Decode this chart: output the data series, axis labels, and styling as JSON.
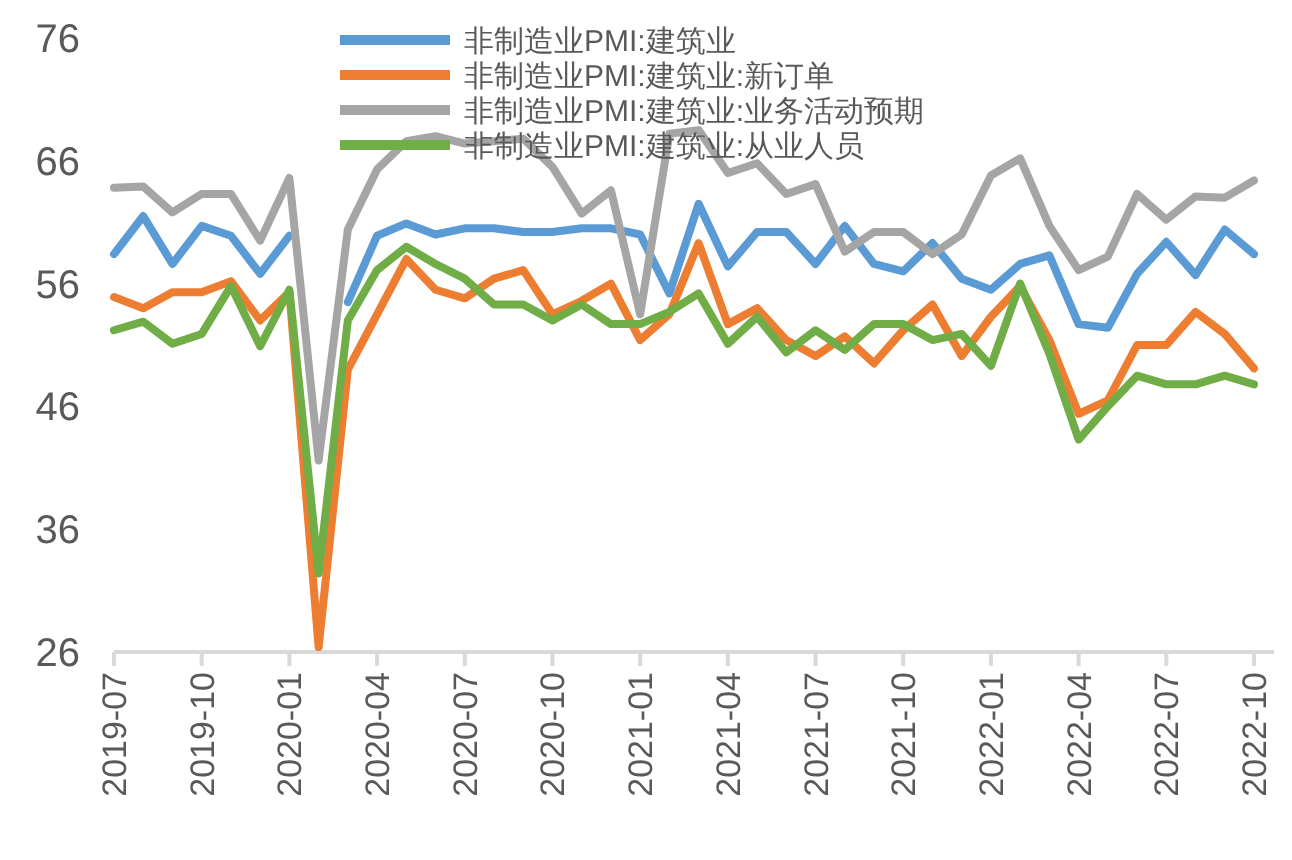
{
  "chart_data": {
    "type": "line",
    "categories": [
      "2019-07",
      null,
      null,
      "2019-10",
      null,
      null,
      "2020-01",
      null,
      null,
      "2020-04",
      null,
      null,
      "2020-07",
      null,
      null,
      "2020-10",
      null,
      null,
      "2021-01",
      null,
      null,
      "2021-04",
      null,
      null,
      "2021-07",
      null,
      null,
      "2021-10",
      null,
      null,
      "2022-01",
      null,
      null,
      "2022-04",
      null,
      null,
      "2022-07",
      null,
      null,
      "2022-10"
    ],
    "series": [
      {
        "name": "非制造业PMI:建筑业",
        "color": "#5b9bd5",
        "values": [
          58.4,
          61.5,
          57.6,
          60.7,
          59.9,
          56.8,
          59.9,
          null,
          54.5,
          59.9,
          60.9,
          60.0,
          60.5,
          60.5,
          60.2,
          60.2,
          60.5,
          60.5,
          60.0,
          55.2,
          62.5,
          57.4,
          60.2,
          60.2,
          57.6,
          60.7,
          57.6,
          57.0,
          59.3,
          56.4,
          55.5,
          57.6,
          58.3,
          52.7,
          52.4,
          56.8,
          59.4,
          56.7,
          60.4,
          58.4
        ]
      },
      {
        "name": "非制造业PMI:建筑业:新订单",
        "color": "#ed7d31",
        "values": [
          54.9,
          54.0,
          55.3,
          55.3,
          56.2,
          53.0,
          55.3,
          26.4,
          49.0,
          53.5,
          58.0,
          55.5,
          54.8,
          56.4,
          57.1,
          53.5,
          54.6,
          56.0,
          51.4,
          53.5,
          59.3,
          52.7,
          54.0,
          51.4,
          50.1,
          51.7,
          49.5,
          52.2,
          54.3,
          50.1,
          53.3,
          55.8,
          51.4,
          45.4,
          46.5,
          51.0,
          51.0,
          53.7,
          51.9,
          49.1
        ]
      },
      {
        "name": "非制造业PMI:建筑业:业务活动预期",
        "color": "#a5a5a5",
        "values": [
          63.8,
          63.9,
          61.8,
          63.3,
          63.3,
          59.5,
          64.6,
          41.6,
          60.4,
          65.3,
          67.6,
          68.0,
          67.4,
          67.6,
          67.8,
          65.5,
          61.7,
          63.6,
          53.5,
          68.2,
          68.5,
          65.0,
          65.8,
          63.3,
          64.1,
          58.6,
          60.2,
          60.2,
          58.4,
          60.0,
          64.8,
          66.2,
          60.7,
          57.1,
          58.2,
          63.3,
          61.2,
          63.1,
          63.0,
          64.4
        ]
      },
      {
        "name": "非制造业PMI:建筑业:从业人员",
        "color": "#70ad47",
        "values": [
          52.2,
          52.9,
          51.1,
          51.9,
          55.8,
          50.9,
          55.5,
          32.4,
          53.0,
          57.1,
          59.0,
          57.6,
          56.4,
          54.3,
          54.3,
          53.0,
          54.3,
          52.7,
          52.7,
          53.7,
          55.2,
          51.1,
          53.3,
          50.4,
          52.2,
          50.6,
          52.7,
          52.7,
          51.4,
          51.9,
          49.3,
          56.0,
          50.3,
          43.3,
          46.0,
          48.5,
          47.8,
          47.8,
          48.5,
          47.8
        ]
      }
    ],
    "ylim": [
      26,
      76
    ],
    "yticks": [
      26,
      36,
      46,
      56,
      66,
      76
    ],
    "legend": "top",
    "line_style": "solid"
  }
}
